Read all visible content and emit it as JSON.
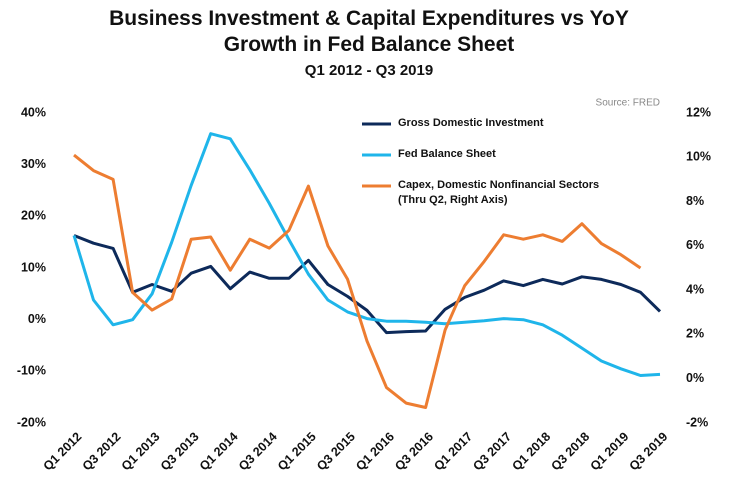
{
  "chart_data": {
    "type": "line",
    "title": "Business Investment & Capital Expenditures vs YoY Growth in Fed Balance Sheet",
    "subtitle": "Q1 2012 - Q3 2019",
    "source": "Source: FRED",
    "categories": [
      "Q1 2012",
      null,
      "Q3 2012",
      null,
      "Q1 2013",
      null,
      "Q3 2013",
      null,
      "Q1 2014",
      null,
      "Q3 2014",
      null,
      "Q1 2015",
      null,
      "Q3 2015",
      null,
      "Q1 2016",
      null,
      "Q3 2016",
      null,
      "Q1 2017",
      null,
      "Q3 2017",
      null,
      "Q1 2018",
      null,
      "Q3 2018",
      null,
      "Q1 2019",
      null,
      "Q3 2019"
    ],
    "ylim": [
      -20,
      40
    ],
    "yticks": [
      {
        "value": -20,
        "label": "-20%"
      },
      {
        "value": -10,
        "label": "-10%"
      },
      {
        "value": 0,
        "label": "0%"
      },
      {
        "value": 10,
        "label": "10%"
      },
      {
        "value": 20,
        "label": "20%"
      },
      {
        "value": 30,
        "label": "30%"
      },
      {
        "value": 40,
        "label": "40%"
      }
    ],
    "y2lim": [
      -2,
      12
    ],
    "y2ticks": [
      {
        "value": -2,
        "label": "-2%"
      },
      {
        "value": 0,
        "label": "0%"
      },
      {
        "value": 2,
        "label": "2%"
      },
      {
        "value": 4,
        "label": "4%"
      },
      {
        "value": 6,
        "label": "6%"
      },
      {
        "value": 8,
        "label": "8%"
      },
      {
        "value": 10,
        "label": "10%"
      },
      {
        "value": 12,
        "label": "12%"
      }
    ],
    "grid": false,
    "legend": "top-right",
    "series": [
      {
        "name": "Gross Domestic Investment",
        "color": "#0d2a5a",
        "axis": "y",
        "values": [
          16.3,
          14.8,
          13.8,
          5.3,
          6.8,
          5.5,
          9,
          10.3,
          6,
          9.2,
          8,
          8,
          11.5,
          6.8,
          4.5,
          1.8,
          -2.5,
          -2.3,
          -2.2,
          2,
          4.3,
          5.7,
          7.5,
          6.6,
          7.8,
          6.9,
          8.3,
          7.8,
          6.8,
          5.3,
          1.6
        ]
      },
      {
        "name": "Fed Balance Sheet",
        "color": "#1fb5ea",
        "axis": "y",
        "values": [
          16.3,
          3.8,
          -1,
          0,
          5,
          15,
          26,
          36,
          35,
          29,
          22.5,
          15.5,
          8.8,
          3.8,
          1.5,
          0.2,
          -0.3,
          -0.3,
          -0.5,
          -0.8,
          -0.5,
          -0.2,
          0.2,
          0,
          -1,
          -3,
          -5.5,
          -8,
          -9.5,
          -10.8,
          -10.6
        ]
      },
      {
        "name": "Capex, Domestic Nonfinancial Sectors (Thru Q2, Right Axis)",
        "color": "#ed7d31",
        "axis": "y2",
        "values": [
          10.1,
          9.4,
          9.0,
          3.9,
          3.1,
          3.6,
          6.3,
          6.4,
          4.9,
          6.3,
          5.9,
          6.7,
          8.7,
          6.0,
          4.5,
          1.7,
          -0.4,
          -1.1,
          -1.3,
          2.2,
          4.2,
          5.3,
          6.5,
          6.3,
          6.5,
          6.2,
          7.0,
          6.1,
          5.6,
          5.0,
          null
        ]
      }
    ]
  }
}
